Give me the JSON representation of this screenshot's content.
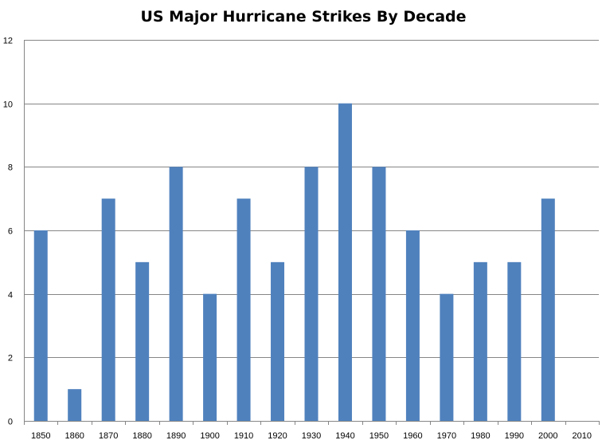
{
  "chart_data": {
    "type": "bar",
    "title": "US Major Hurricane Strikes By Decade",
    "xlabel": "",
    "ylabel": "",
    "categories": [
      "1850",
      "1860",
      "1870",
      "1880",
      "1890",
      "1900",
      "1910",
      "1920",
      "1930",
      "1940",
      "1950",
      "1960",
      "1970",
      "1980",
      "1990",
      "2000",
      "2010"
    ],
    "values": [
      6,
      1,
      7,
      5,
      8,
      4,
      7,
      5,
      8,
      10,
      8,
      6,
      4,
      5,
      5,
      7,
      0
    ],
    "ylim": [
      0,
      12
    ],
    "yticks": [
      "0",
      "2",
      "4",
      "6",
      "8",
      "10",
      "12"
    ],
    "grid": true,
    "legend": "none",
    "bar_color": "#4F81BD"
  }
}
